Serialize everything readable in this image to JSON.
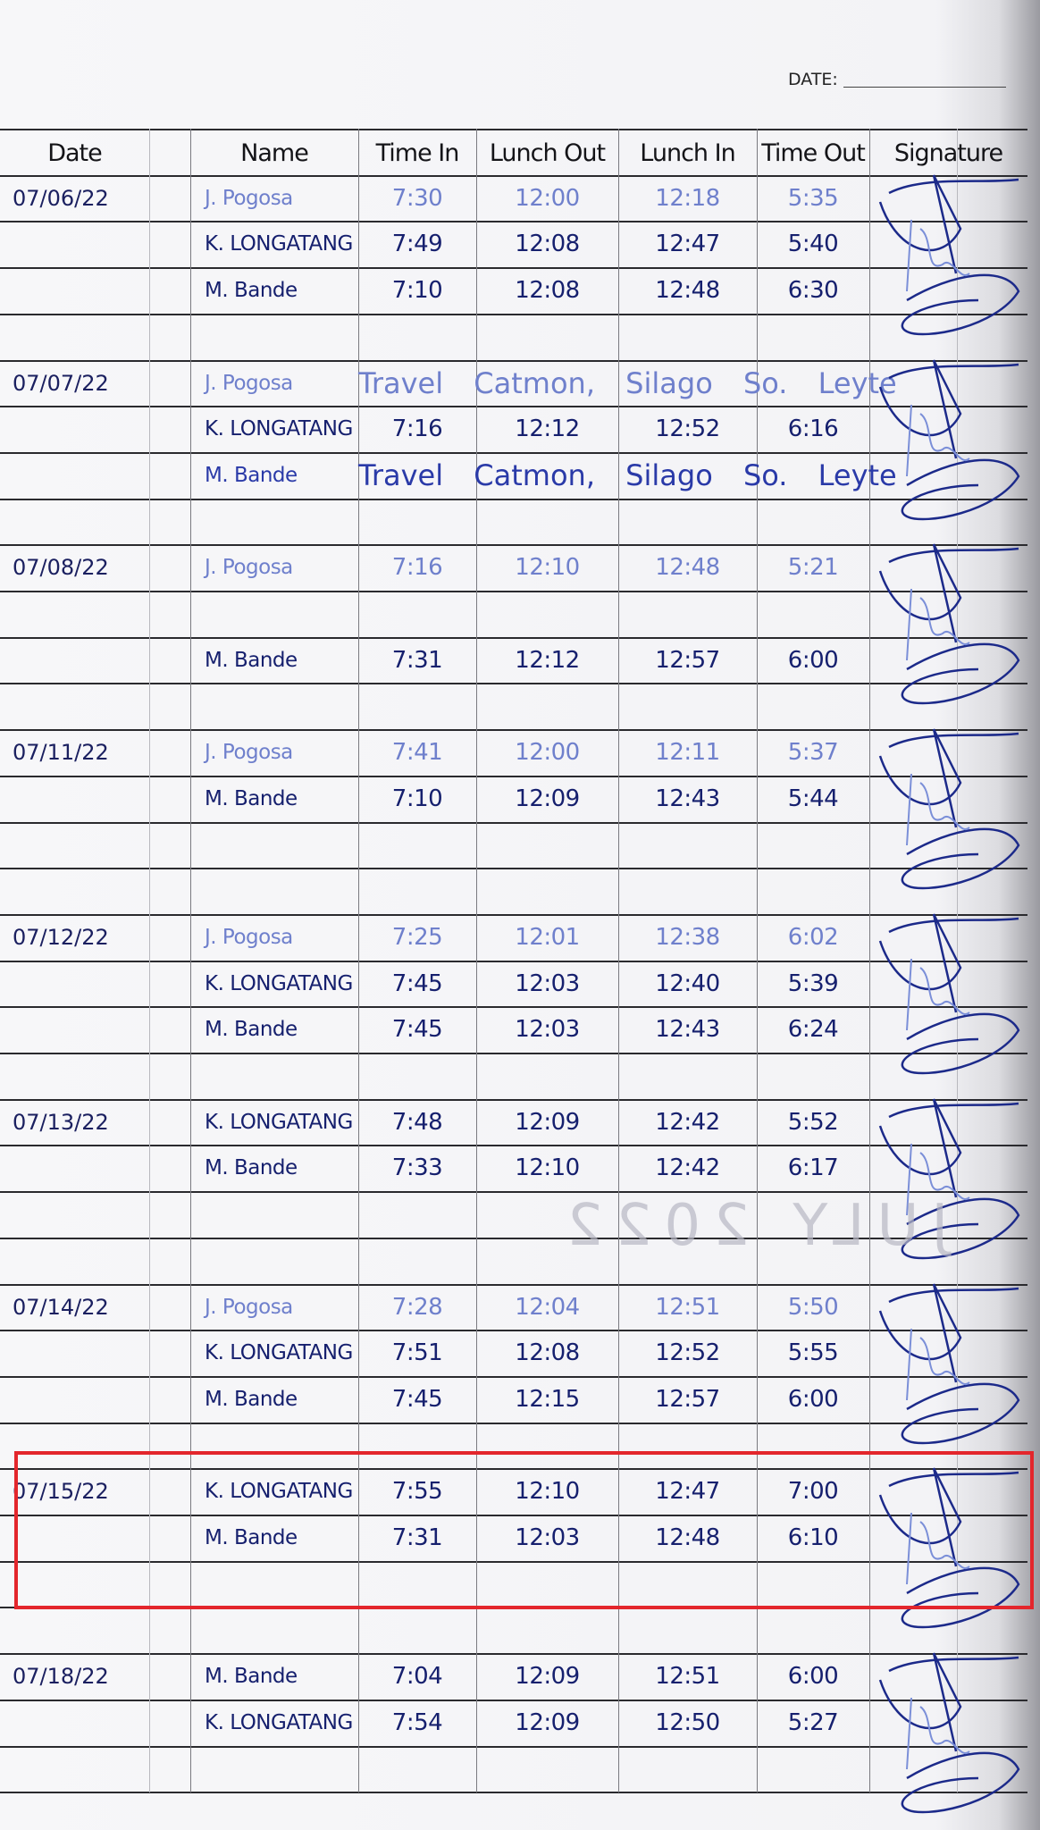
{
  "page": {
    "date_label": "DATE:",
    "bleed_stamp": "JULY 2022"
  },
  "colors": {
    "dark_ink": "#16206e",
    "light_ink": "#6f80cc",
    "highlight_box": "#e3262c"
  },
  "headers": [
    "Date",
    "Name",
    "Time In",
    "Lunch Out",
    "Lunch In",
    "Time Out",
    "Signature"
  ],
  "groups": [
    {
      "date": "07/06/22",
      "highlighted": false,
      "rows": [
        {
          "name": "J. Pogosa",
          "ink": "light",
          "time_in": "7:30",
          "lunch_out": "12:00",
          "lunch_in": "12:18",
          "time_out": "5:35"
        },
        {
          "name": "K. LONGATANG",
          "ink": "dark",
          "time_in": "7:49",
          "lunch_out": "12:08",
          "lunch_in": "12:47",
          "time_out": "5:40"
        },
        {
          "name": "M. Bande",
          "ink": "dark",
          "time_in": "7:10",
          "lunch_out": "12:08",
          "lunch_in": "12:48",
          "time_out": "6:30"
        }
      ]
    },
    {
      "date": "07/07/22",
      "highlighted": false,
      "rows": [
        {
          "name": "J. Pogosa",
          "ink": "light",
          "note": "Travel Catmon, Silago So. Leyte"
        },
        {
          "name": "K. LONGATANG",
          "ink": "dark",
          "time_in": "7:16",
          "lunch_out": "12:12",
          "lunch_in": "12:52",
          "time_out": "6:16"
        },
        {
          "name": "M. Bande",
          "ink": "mid",
          "note": "Travel Catmon, Silago So. Leyte"
        }
      ]
    },
    {
      "date": "07/08/22",
      "highlighted": false,
      "rows": [
        {
          "name": "J. Pogosa",
          "ink": "light",
          "time_in": "7:16",
          "lunch_out": "12:10",
          "lunch_in": "12:48",
          "time_out": "5:21"
        },
        {
          "name": "",
          "ink": "dark"
        },
        {
          "name": "M. Bande",
          "ink": "dark",
          "time_in": "7:31",
          "lunch_out": "12:12",
          "lunch_in": "12:57",
          "time_out": "6:00"
        }
      ]
    },
    {
      "date": "07/11/22",
      "highlighted": false,
      "rows": [
        {
          "name": "J. Pogosa",
          "ink": "light",
          "time_in": "7:41",
          "lunch_out": "12:00",
          "lunch_in": "12:11",
          "time_out": "5:37"
        },
        {
          "name": "M. Bande",
          "ink": "dark",
          "time_in": "7:10",
          "lunch_out": "12:09",
          "lunch_in": "12:43",
          "time_out": "5:44"
        }
      ]
    },
    {
      "date": "07/12/22",
      "highlighted": false,
      "rows": [
        {
          "name": "J. Pogosa",
          "ink": "light",
          "time_in": "7:25",
          "lunch_out": "12:01",
          "lunch_in": "12:38",
          "time_out": "6:02"
        },
        {
          "name": "K. LONGATANG",
          "ink": "dark",
          "time_in": "7:45",
          "lunch_out": "12:03",
          "lunch_in": "12:40",
          "time_out": "5:39"
        },
        {
          "name": "M. Bande",
          "ink": "dark",
          "time_in": "7:45",
          "lunch_out": "12:03",
          "lunch_in": "12:43",
          "time_out": "6:24"
        }
      ]
    },
    {
      "date": "07/13/22",
      "highlighted": false,
      "rows": [
        {
          "name": "K. LONGATANG",
          "ink": "dark",
          "time_in": "7:48",
          "lunch_out": "12:09",
          "lunch_in": "12:42",
          "time_out": "5:52"
        },
        {
          "name": "M. Bande",
          "ink": "dark",
          "time_in": "7:33",
          "lunch_out": "12:10",
          "lunch_in": "12:42",
          "time_out": "6:17"
        }
      ]
    },
    {
      "date": "07/14/22",
      "highlighted": false,
      "rows": [
        {
          "name": "J. Pogosa",
          "ink": "light",
          "time_in": "7:28",
          "lunch_out": "12:04",
          "lunch_in": "12:51",
          "time_out": "5:50"
        },
        {
          "name": "K. LONGATANG",
          "ink": "dark",
          "time_in": "7:51",
          "lunch_out": "12:08",
          "lunch_in": "12:52",
          "time_out": "5:55"
        },
        {
          "name": "M. Bande",
          "ink": "dark",
          "time_in": "7:45",
          "lunch_out": "12:15",
          "lunch_in": "12:57",
          "time_out": "6:00"
        }
      ]
    },
    {
      "date": "07/15/22",
      "highlighted": true,
      "rows": [
        {
          "name": "K. LONGATANG",
          "ink": "dark",
          "time_in": "7:55",
          "lunch_out": "12:10",
          "lunch_in": "12:47",
          "time_out": "7:00"
        },
        {
          "name": "M. Bande",
          "ink": "dark",
          "time_in": "7:31",
          "lunch_out": "12:03",
          "lunch_in": "12:48",
          "time_out": "6:10"
        }
      ]
    },
    {
      "date": "07/18/22",
      "highlighted": false,
      "rows": [
        {
          "name": "M. Bande",
          "ink": "dark",
          "time_in": "7:04",
          "lunch_out": "12:09",
          "lunch_in": "12:51",
          "time_out": "6:00"
        },
        {
          "name": "K. LONGATANG",
          "ink": "dark",
          "time_in": "7:54",
          "lunch_out": "12:09",
          "lunch_in": "12:50",
          "time_out": "5:27"
        }
      ]
    }
  ]
}
